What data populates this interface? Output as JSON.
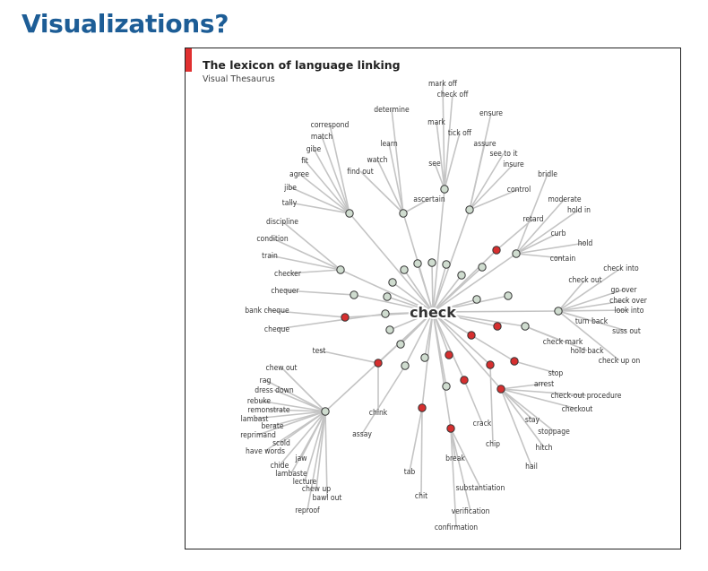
{
  "slide": {
    "title": "Visualizations?"
  },
  "figure": {
    "title": "The lexicon of language linking",
    "subtitle": "Visual Thesaurus",
    "center_word": "check",
    "colors": {
      "meaning_node": "#cfdccf",
      "red_node": "#d62f2f",
      "edge": "#c4c4c4",
      "accent": "#e03030"
    },
    "words": [
      "mark off",
      "check off",
      "determine",
      "ensure",
      "correspond",
      "mark",
      "tick off",
      "match",
      "learn",
      "assure",
      "gibe",
      "see to it",
      "watch",
      "see",
      "insure",
      "fit",
      "find out",
      "bridle",
      "agree",
      "jibe",
      "control",
      "tally",
      "ascertain",
      "moderate",
      "hold in",
      "discipline",
      "retard",
      "curb",
      "condition",
      "hold",
      "train",
      "contain",
      "checker",
      "check into",
      "check out",
      "chequer",
      "go over",
      "check over",
      "bank cheque",
      "look into",
      "turn back",
      "cheque",
      "suss out",
      "check mark",
      "test",
      "hold back",
      "check up on",
      "chew out",
      "stop",
      "rag",
      "arrest",
      "dress down",
      "check-out procedure",
      "rebuke",
      "checkout",
      "remonstrate",
      "chink",
      "lambast",
      "stay",
      "berate",
      "crack",
      "stoppage",
      "reprimand",
      "assay",
      "scold",
      "chip",
      "hitch",
      "have words",
      "jaw",
      "break",
      "chide",
      "hail",
      "lambaste",
      "lecture",
      "tab",
      "chew up",
      "bawl out",
      "substantiation",
      "chit",
      "reproof",
      "verification",
      "confirmation"
    ]
  }
}
